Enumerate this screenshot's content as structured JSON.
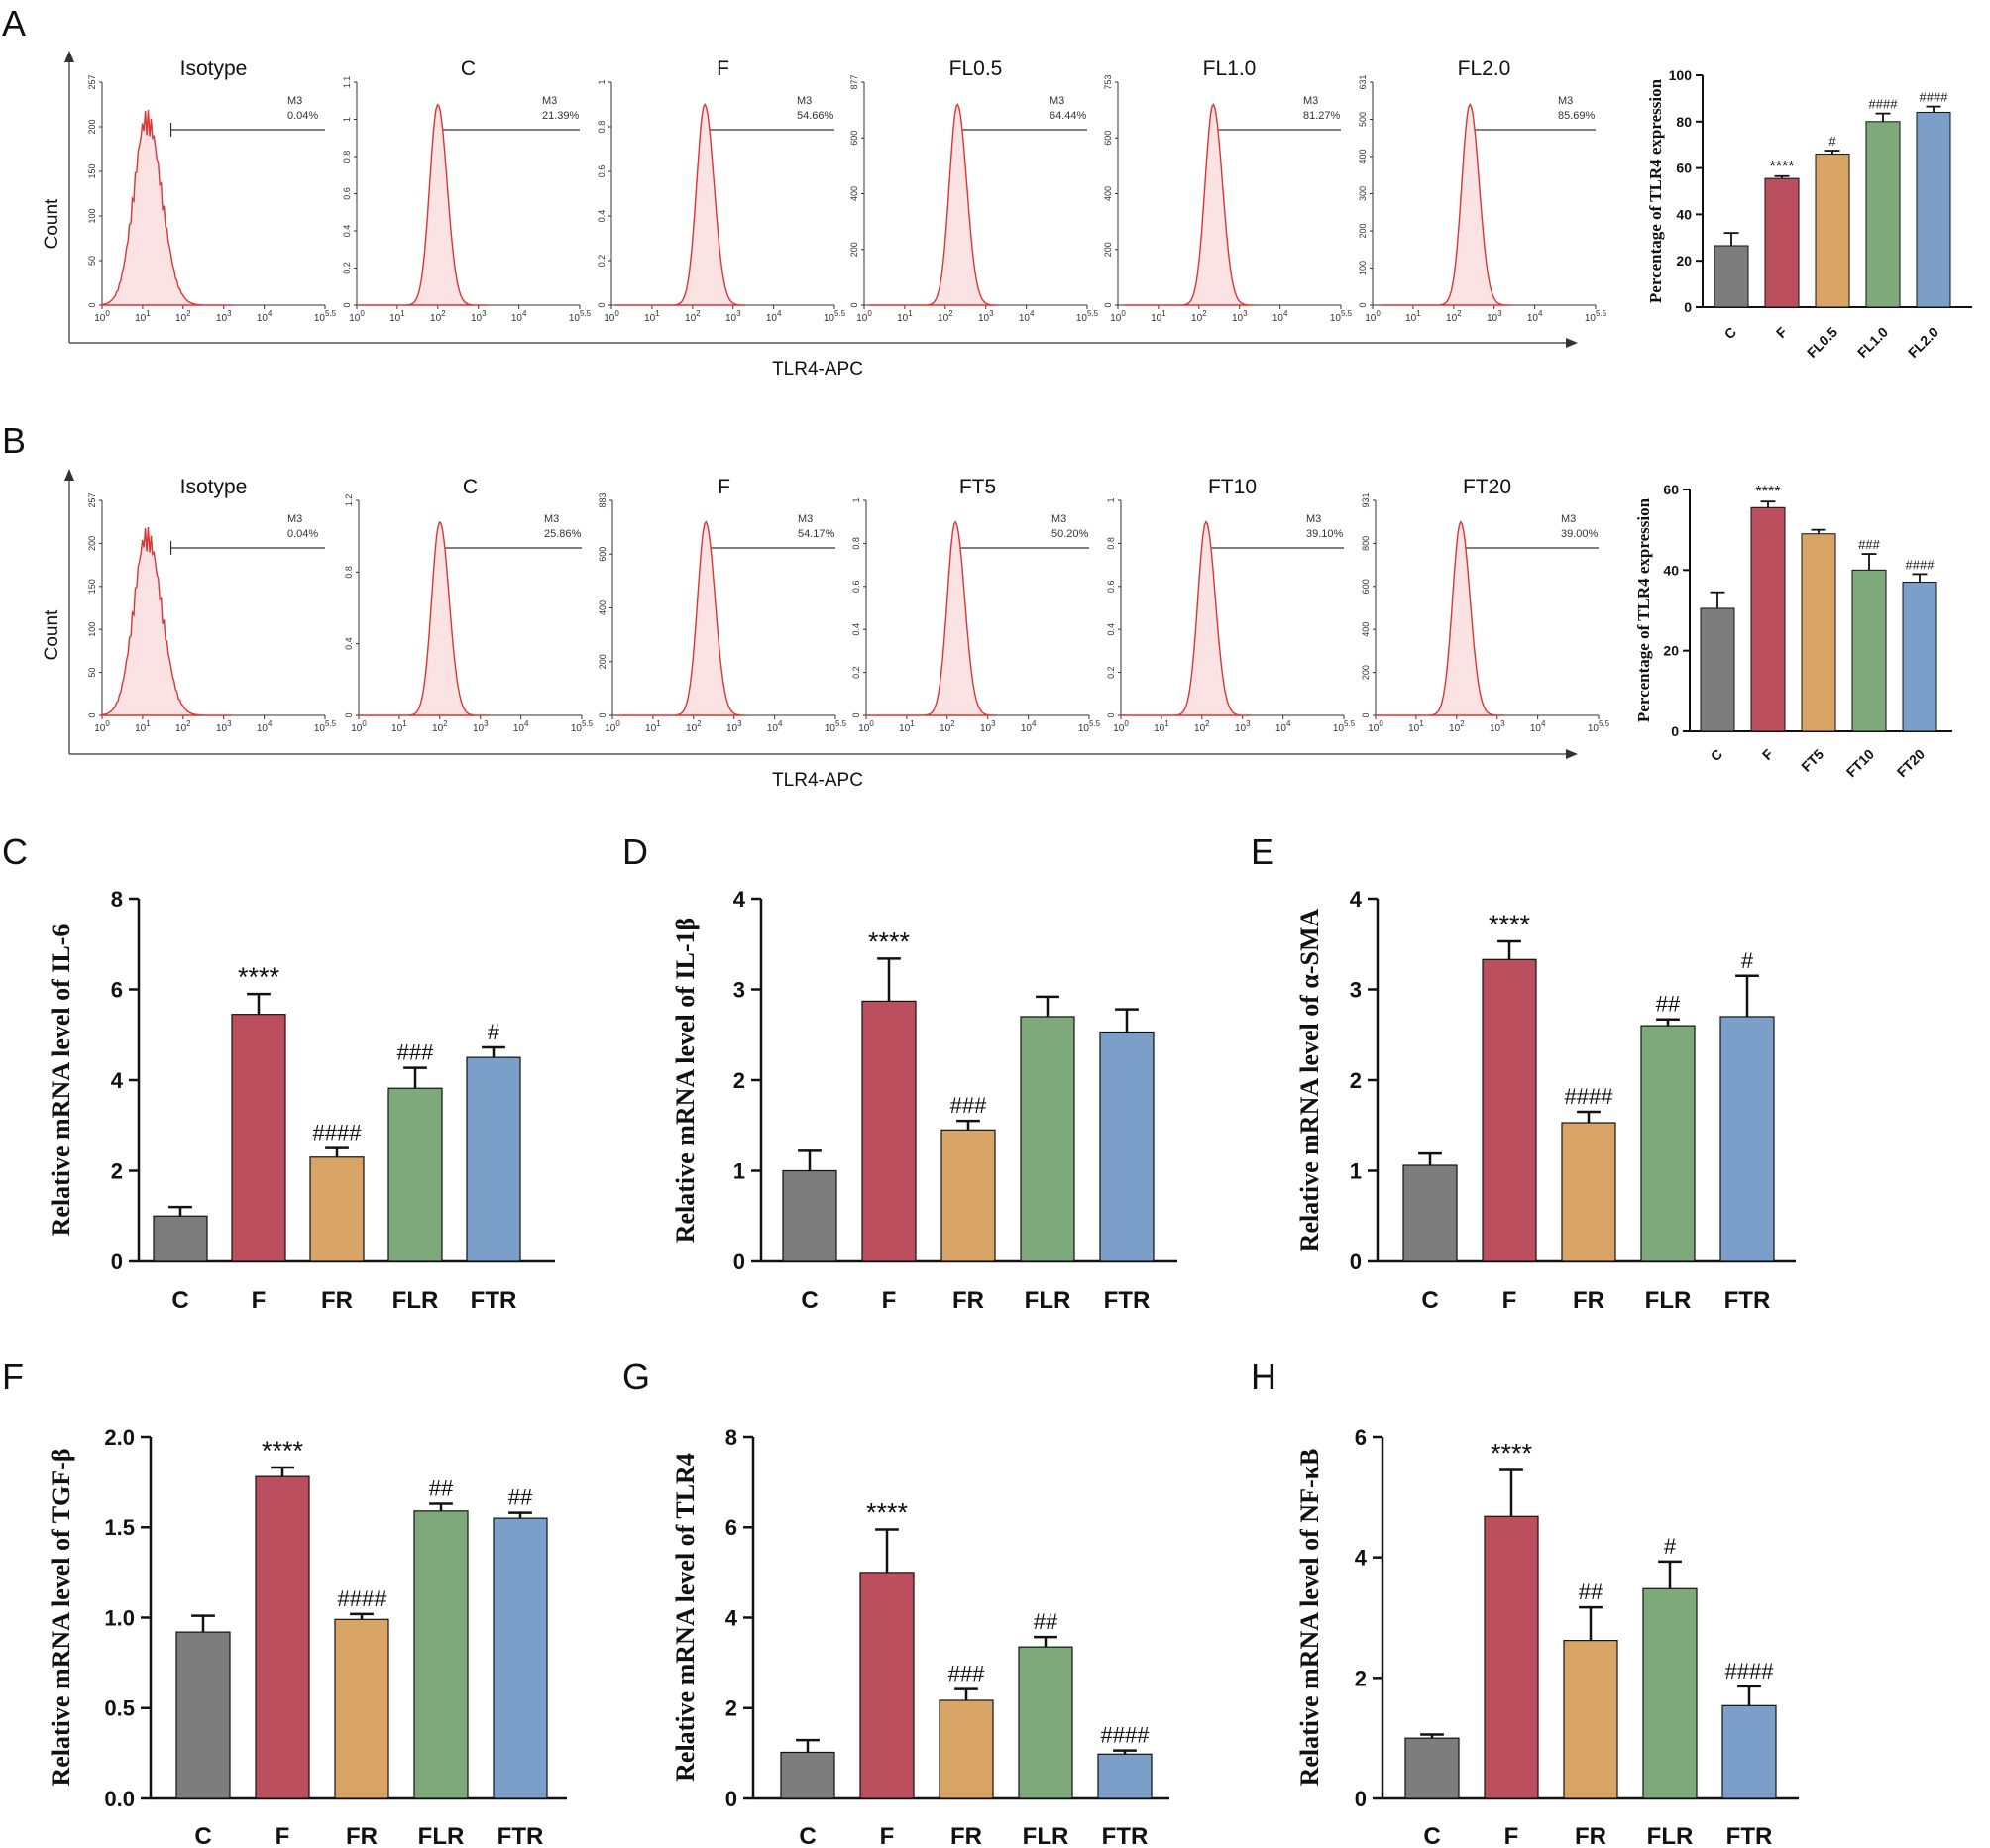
{
  "panel_letters": [
    "A",
    "B",
    "C",
    "D",
    "E",
    "F",
    "G",
    "H"
  ],
  "chart_data": [
    {
      "id": "A-flow",
      "type": "histogram",
      "xlabel": "TLR4-APC",
      "ylabel": "Count",
      "gate_label": "M3",
      "x_ticks": [
        "10^0",
        "10^1",
        "10^2",
        "10^3",
        "10^4",
        "10^5.5"
      ],
      "histograms": [
        {
          "title": "Isotype",
          "ymax": "257",
          "y_ticks": [
            "0",
            "50",
            "100",
            "150",
            "200",
            "257"
          ],
          "gate_pct": "0.04%",
          "peak_log": 1.1
        },
        {
          "title": "C",
          "ymax": "1.1",
          "y_ticks": [
            "0",
            "0.2",
            "0.4",
            "0.6",
            "0.8",
            "1",
            "1.1"
          ],
          "gate_pct": "21.39%",
          "peak_log": 2.0
        },
        {
          "title": "F",
          "ymax": "1",
          "y_ticks": [
            "0",
            "0.2",
            "0.4",
            "0.6",
            "0.8",
            "1"
          ],
          "gate_pct": "54.66%",
          "peak_log": 2.3
        },
        {
          "title": "FL0.5",
          "ymax": "877",
          "y_ticks": [
            "0",
            "200",
            "400",
            "600",
            "877"
          ],
          "gate_pct": "64.44%",
          "peak_log": 2.3
        },
        {
          "title": "FL1.0",
          "ymax": "753",
          "y_ticks": [
            "0",
            "200",
            "400",
            "600",
            "753"
          ],
          "gate_pct": "81.27%",
          "peak_log": 2.35
        },
        {
          "title": "FL2.0",
          "ymax": "631",
          "y_ticks": [
            "0",
            "100",
            "200",
            "300",
            "400",
            "500",
            "631"
          ],
          "gate_pct": "85.69%",
          "peak_log": 2.4
        }
      ]
    },
    {
      "id": "A-bar",
      "type": "bar",
      "ylabel": "Percentage of TLR4 expression",
      "ylim": [
        0,
        100
      ],
      "y_ticks": [
        0,
        20,
        40,
        60,
        80,
        100
      ],
      "categories": [
        "C",
        "F",
        "FL0.5",
        "FL1.0",
        "FL2.0"
      ],
      "values": [
        26.5,
        55.5,
        66,
        80,
        84
      ],
      "errors": [
        5.5,
        1,
        1.5,
        3.5,
        2.5
      ],
      "significance": [
        "",
        "****",
        "#",
        "####",
        "####"
      ],
      "colors": [
        "#7d7d7d",
        "#bc4f5d",
        "#d9a566",
        "#7da97b",
        "#7b9fc9"
      ]
    },
    {
      "id": "B-flow",
      "type": "histogram",
      "xlabel": "TLR4-APC",
      "ylabel": "Count",
      "gate_label": "M3",
      "x_ticks": [
        "10^0",
        "10^1",
        "10^2",
        "10^3",
        "10^4",
        "10^5.5"
      ],
      "histograms": [
        {
          "title": "Isotype",
          "ymax": "257",
          "y_ticks": [
            "0",
            "50",
            "100",
            "150",
            "200",
            "257"
          ],
          "gate_pct": "0.04%",
          "peak_log": 1.1
        },
        {
          "title": "C",
          "ymax": "1.2",
          "y_ticks": [
            "0",
            "0.4",
            "0.8",
            "1.2"
          ],
          "gate_pct": "25.86%",
          "peak_log": 2.0
        },
        {
          "title": "F",
          "ymax": "883",
          "y_ticks": [
            "0",
            "200",
            "400",
            "600",
            "883"
          ],
          "gate_pct": "54.17%",
          "peak_log": 2.3
        },
        {
          "title": "FT5",
          "ymax": "1",
          "y_ticks": [
            "0",
            "0.2",
            "0.4",
            "0.6",
            "0.8",
            "1"
          ],
          "gate_pct": "50.20%",
          "peak_log": 2.2
        },
        {
          "title": "FT10",
          "ymax": "1",
          "y_ticks": [
            "0",
            "0.2",
            "0.4",
            "0.6",
            "0.8",
            "1"
          ],
          "gate_pct": "39.10%",
          "peak_log": 2.1
        },
        {
          "title": "FT20",
          "ymax": "931",
          "y_ticks": [
            "0",
            "200",
            "400",
            "600",
            "800",
            "931"
          ],
          "gate_pct": "39.00%",
          "peak_log": 2.1
        }
      ]
    },
    {
      "id": "B-bar",
      "type": "bar",
      "ylabel": "Percentage of TLR4 expression",
      "ylim": [
        0,
        60
      ],
      "y_ticks": [
        0,
        20,
        40,
        60
      ],
      "categories": [
        "C",
        "F",
        "FT5",
        "FT10",
        "FT20"
      ],
      "values": [
        30.5,
        55.5,
        49,
        40,
        37
      ],
      "errors": [
        4,
        1.5,
        1,
        4,
        2
      ],
      "significance": [
        "",
        "****",
        "",
        "###",
        "####"
      ],
      "colors": [
        "#7d7d7d",
        "#bc4f5d",
        "#d9a566",
        "#7da97b",
        "#7b9fc9"
      ]
    },
    {
      "id": "C",
      "type": "bar",
      "ylabel": "Relative mRNA level of IL-6",
      "ylim": [
        0,
        8
      ],
      "y_ticks": [
        0,
        2,
        4,
        6,
        8
      ],
      "categories": [
        "C",
        "F",
        "FR",
        "FLR",
        "FTR"
      ],
      "values": [
        1.0,
        5.45,
        2.3,
        3.82,
        4.5
      ],
      "errors": [
        0.2,
        0.45,
        0.2,
        0.45,
        0.22
      ],
      "significance": [
        "",
        "****",
        "####",
        "###",
        "#"
      ],
      "colors": [
        "#7d7d7d",
        "#bc4f5d",
        "#d9a566",
        "#7da97b",
        "#7b9fc9"
      ]
    },
    {
      "id": "D",
      "type": "bar",
      "ylabel": "Relative mRNA level of IL-1β",
      "ylim": [
        0,
        4
      ],
      "y_ticks": [
        0,
        1,
        2,
        3,
        4
      ],
      "categories": [
        "C",
        "F",
        "FR",
        "FLR",
        "FTR"
      ],
      "values": [
        1.0,
        2.87,
        1.45,
        2.7,
        2.53
      ],
      "errors": [
        0.22,
        0.47,
        0.1,
        0.22,
        0.25
      ],
      "significance": [
        "",
        "****",
        "###",
        "",
        ""
      ],
      "colors": [
        "#7d7d7d",
        "#bc4f5d",
        "#d9a566",
        "#7da97b",
        "#7b9fc9"
      ]
    },
    {
      "id": "E",
      "type": "bar",
      "ylabel": "Relative mRNA level of α-SMA",
      "ylim": [
        0,
        4
      ],
      "y_ticks": [
        0,
        1,
        2,
        3,
        4
      ],
      "categories": [
        "C",
        "F",
        "FR",
        "FLR",
        "FTR"
      ],
      "values": [
        1.06,
        3.33,
        1.53,
        2.6,
        2.7
      ],
      "errors": [
        0.13,
        0.2,
        0.12,
        0.07,
        0.45
      ],
      "significance": [
        "",
        "****",
        "####",
        "##",
        "#"
      ],
      "colors": [
        "#7d7d7d",
        "#bc4f5d",
        "#d9a566",
        "#7da97b",
        "#7b9fc9"
      ]
    },
    {
      "id": "F",
      "type": "bar",
      "ylabel": "Relative mRNA level of TGF-β",
      "ylim": [
        0,
        2.0
      ],
      "y_ticks": [
        "0.0",
        "0.5",
        "1.0",
        "1.5",
        "2.0"
      ],
      "categories": [
        "C",
        "F",
        "FR",
        "FLR",
        "FTR"
      ],
      "values": [
        0.92,
        1.78,
        0.99,
        1.59,
        1.55
      ],
      "errors": [
        0.09,
        0.05,
        0.03,
        0.04,
        0.03
      ],
      "significance": [
        "",
        "****",
        "####",
        "##",
        "##"
      ],
      "colors": [
        "#7d7d7d",
        "#bc4f5d",
        "#d9a566",
        "#7da97b",
        "#7b9fc9"
      ]
    },
    {
      "id": "G",
      "type": "bar",
      "ylabel": "Relative mRNA level of TLR4",
      "ylim": [
        0,
        8
      ],
      "y_ticks": [
        0,
        2,
        4,
        6,
        8
      ],
      "categories": [
        "C",
        "F",
        "FR",
        "FLR",
        "FTR"
      ],
      "values": [
        1.02,
        5.0,
        2.17,
        3.35,
        0.98
      ],
      "errors": [
        0.27,
        0.95,
        0.25,
        0.22,
        0.08
      ],
      "significance": [
        "",
        "****",
        "###",
        "##",
        "####"
      ],
      "colors": [
        "#7d7d7d",
        "#bc4f5d",
        "#d9a566",
        "#7da97b",
        "#7b9fc9"
      ]
    },
    {
      "id": "H",
      "type": "bar",
      "ylabel": "Relative mRNA level of NF-κB",
      "ylim": [
        0,
        6
      ],
      "y_ticks": [
        0,
        2,
        4,
        6
      ],
      "categories": [
        "C",
        "F",
        "FR",
        "FLR",
        "FTR"
      ],
      "values": [
        1.0,
        4.68,
        2.62,
        3.48,
        1.54
      ],
      "errors": [
        0.06,
        0.77,
        0.55,
        0.45,
        0.32
      ],
      "significance": [
        "",
        "****",
        "##",
        "#",
        "####"
      ],
      "colors": [
        "#7d7d7d",
        "#bc4f5d",
        "#d9a566",
        "#7da97b",
        "#7b9fc9"
      ]
    }
  ]
}
